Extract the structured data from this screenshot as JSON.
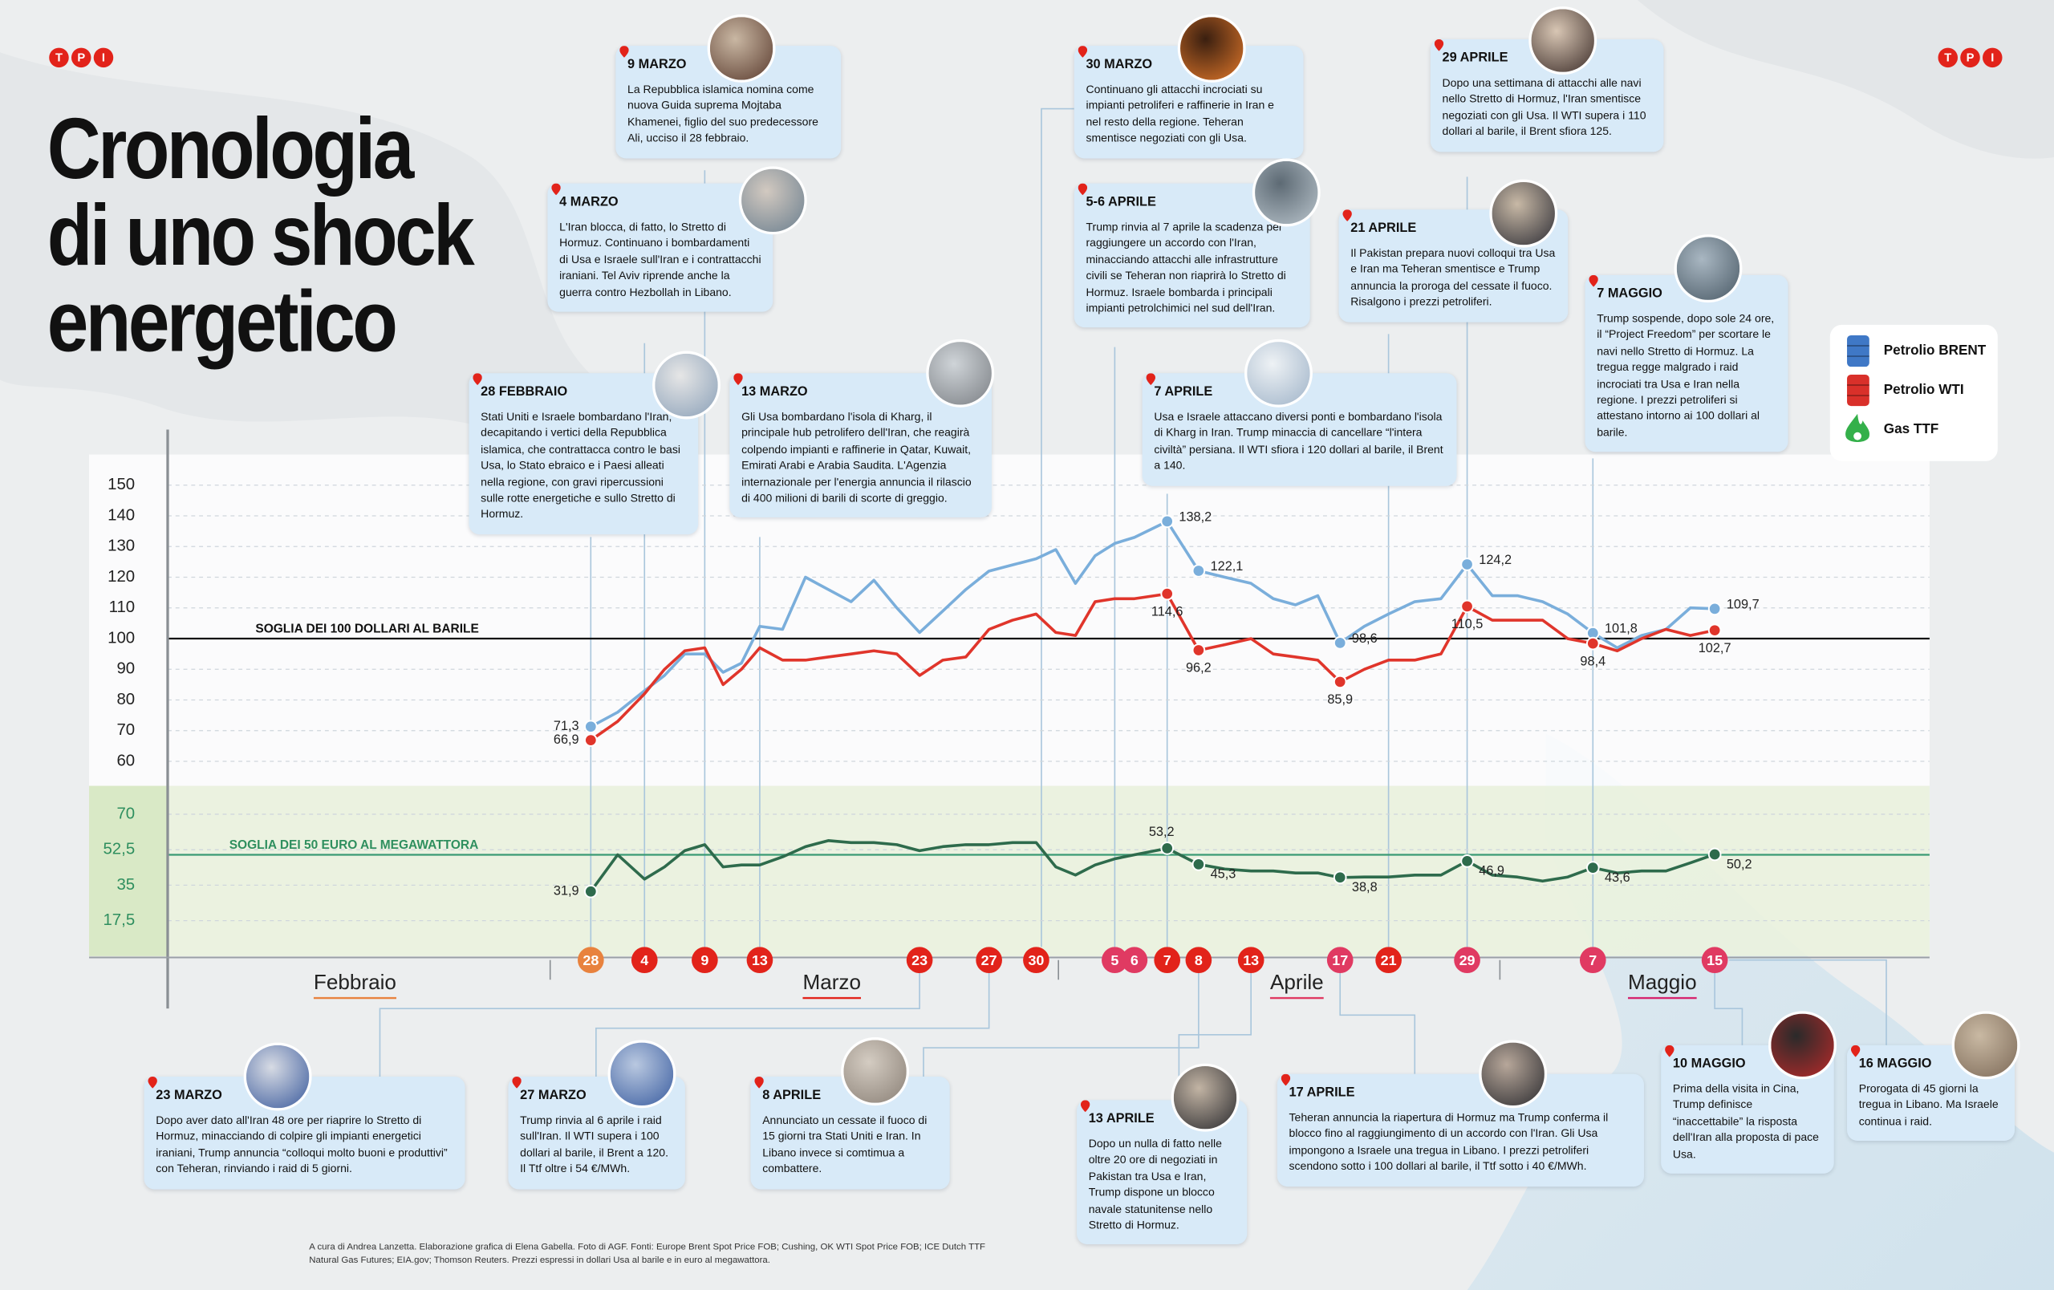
{
  "header": {
    "logo": "TPI",
    "title": [
      "Cronologia",
      "di uno shock",
      "energetico"
    ]
  },
  "chart_data": [
    {
      "type": "line",
      "categories": [
        "28",
        null,
        "4",
        null,
        null,
        "9",
        null,
        null,
        "13",
        null,
        null,
        null,
        null,
        null,
        null,
        "23",
        null,
        null,
        "27",
        null,
        "30",
        null,
        null,
        null,
        "5",
        "6",
        "7",
        "8",
        null,
        "13",
        null,
        null,
        null,
        "17",
        null,
        "21",
        null,
        null,
        "29",
        null,
        null,
        null,
        null,
        "7",
        null,
        null,
        null,
        null,
        "15"
      ],
      "months": [
        "Febbraio",
        "Marzo",
        "Aprile",
        "Maggio"
      ],
      "ylim": [
        52,
        160
      ],
      "yticks": [
        60,
        70,
        80,
        90,
        100,
        110,
        120,
        130,
        140,
        150
      ],
      "grid": true,
      "threshold": {
        "value": 100,
        "label": "SOGLIA DEI 100 DOLLARI AL BARILE"
      },
      "series": [
        {
          "name": "Petrolio BRENT",
          "color": "#7aaedb",
          "values": [
            71.3,
            76,
            83,
            88,
            95,
            95,
            89,
            92,
            104,
            103,
            120,
            116,
            112,
            119,
            110,
            102,
            109,
            116,
            122,
            124,
            126,
            129,
            118,
            127,
            131,
            133,
            138.2,
            122.1,
            120,
            118,
            113,
            111,
            114,
            98.6,
            104,
            108,
            112,
            113,
            124.2,
            114,
            114,
            112,
            108,
            101.8,
            97,
            101,
            103,
            110,
            109.7
          ],
          "value_labels": [
            "71,3",
            null,
            null,
            null,
            null,
            null,
            null,
            null,
            null,
            null,
            null,
            null,
            null,
            null,
            null,
            null,
            null,
            null,
            null,
            null,
            null,
            null,
            null,
            null,
            null,
            null,
            "138,2",
            "122,1",
            null,
            null,
            null,
            null,
            null,
            "98,6",
            null,
            null,
            null,
            null,
            "124,2",
            null,
            null,
            null,
            null,
            "101,8",
            null,
            null,
            null,
            null,
            "109,7"
          ]
        },
        {
          "name": "Petrolio WTI",
          "color": "#e0352b",
          "values": [
            66.9,
            73,
            82,
            90,
            96,
            97,
            85,
            90,
            97,
            93,
            93,
            94,
            95,
            96,
            95,
            88,
            93,
            94,
            103,
            106,
            108,
            102,
            101,
            112,
            113,
            113,
            114.6,
            96.2,
            98,
            100,
            95,
            94,
            93,
            85.9,
            90,
            93,
            93,
            95,
            110.5,
            106,
            106,
            106,
            100,
            98.4,
            96,
            100,
            103,
            101,
            102.7
          ],
          "value_labels": [
            "66,9",
            null,
            null,
            null,
            null,
            null,
            null,
            null,
            null,
            null,
            null,
            null,
            null,
            null,
            null,
            null,
            null,
            null,
            null,
            null,
            null,
            null,
            null,
            null,
            null,
            null,
            "114,6",
            "96,2",
            null,
            null,
            null,
            null,
            null,
            "85,9",
            null,
            null,
            null,
            null,
            "110,5",
            null,
            null,
            null,
            null,
            "98,4",
            null,
            null,
            null,
            null,
            "102,7"
          ]
        }
      ]
    },
    {
      "type": "line",
      "ylim": [
        0,
        84
      ],
      "yticks": [
        {
          "value": 17.5,
          "label": "17,5"
        },
        35,
        {
          "value": 52.5,
          "label": "52,5"
        },
        70
      ],
      "grid": true,
      "threshold": {
        "value": 50,
        "label": "SOGLIA DEI 50 EURO AL MEGAWATTORA"
      },
      "series": [
        {
          "name": "Gas TTF",
          "color": "#2e6b4c",
          "values": [
            31.9,
            50,
            38,
            44,
            52,
            55,
            44,
            45,
            45,
            49,
            54,
            57,
            56,
            56,
            55,
            52,
            54,
            55,
            55,
            56,
            56,
            44,
            40,
            45,
            48,
            50,
            53.2,
            45.3,
            43,
            42,
            42,
            41,
            41,
            38.8,
            39,
            39,
            40,
            40,
            46.9,
            40,
            39,
            37,
            39,
            43.6,
            41,
            42,
            42,
            46,
            50.2
          ],
          "value_labels": [
            "31,9",
            null,
            null,
            null,
            null,
            null,
            null,
            null,
            null,
            null,
            null,
            null,
            null,
            null,
            null,
            null,
            null,
            null,
            null,
            null,
            null,
            null,
            null,
            null,
            null,
            null,
            "53,2",
            "45,3",
            null,
            null,
            null,
            null,
            null,
            "38,8",
            null,
            null,
            null,
            null,
            "46,9",
            null,
            null,
            null,
            null,
            "43,6",
            null,
            null,
            null,
            null,
            "50,2"
          ]
        }
      ]
    }
  ],
  "events": [
    {
      "date": "9 MARZO",
      "text": "La Repubblica islamica nomina come nuova Guida suprema Mojtaba Khamenei, figlio del suo predecessore Ali, ucciso il 28 febbraio."
    },
    {
      "date": "4 MARZO",
      "text": "L'Iran blocca, di fatto, lo Stretto di Hormuz. Continuano i bombardamenti di Usa e Israele sull'Iran e i contrattacchi iraniani. Tel Aviv riprende anche la guerra contro Hezbollah in Libano."
    },
    {
      "date": "28 FEBBRAIO",
      "text": "Stati Uniti e Israele bombardano l'Iran, decapitando i vertici della Repubblica islamica, che contrattacca contro le basi Usa, lo Stato ebraico e i Paesi alleati nella regione, con gravi ripercussioni sulle rotte energetiche e sullo Stretto di Hormuz."
    },
    {
      "date": "13 MARZO",
      "text": "Gli Usa bombardano l'isola di Kharg, il principale hub petrolifero dell'Iran, che reagirà colpendo impianti e raffinerie in Qatar, Kuwait, Emirati Arabi e Arabia Saudita. L'Agenzia internazionale per l'energia annuncia il rilascio di 400 milioni di barili di scorte di greggio."
    },
    {
      "date": "30 MARZO",
      "text": "Continuano gli attacchi incrociati su impianti petroliferi e raffinerie in Iran e nel resto della regione. Teheran smentisce negoziati con gli Usa."
    },
    {
      "date": "5-6 APRILE",
      "text": "Trump rinvia al 7 aprile la scadenza per raggiungere un accordo con l'Iran, minacciando attacchi alle infrastrutture civili se Teheran non riaprirà lo Stretto di Hormuz. Israele bombarda i principali impianti petrolchimici nel sud dell'Iran."
    },
    {
      "date": "7 APRILE",
      "text": "Usa e Israele attaccano diversi ponti e bombardano l'isola di Kharg in Iran. Trump minaccia di cancellare “l'intera civiltà” persiana. Il WTI sfiora i 120 dollari al barile, il Brent a 140."
    },
    {
      "date": "21 APRILE",
      "text": "Il Pakistan prepara nuovi colloqui tra Usa e Iran ma Teheran smentisce e Trump annuncia la proroga del cessate il fuoco. Risalgono i prezzi petroliferi."
    },
    {
      "date": "29 APRILE",
      "text": "Dopo una settimana di attacchi alle navi nello Stretto di Hormuz, l'Iran smentisce negoziati con gli Usa. Il WTI supera i 110 dollari al barile, il Brent sfiora 125."
    },
    {
      "date": "7 MAGGIO",
      "text": "Trump sospende, dopo sole 24 ore, il “Project Freedom” per scortare le navi nello Stretto di Hormuz. La tregua regge malgrado i raid incrociati tra Usa e Iran nella regione. I prezzi petroliferi si attestano intorno ai 100 dollari al barile."
    },
    {
      "date": "23 MARZO",
      "text": "Dopo aver dato all'Iran 48 ore per riaprire lo Stretto di Hormuz, minacciando di colpire gli impianti energetici iraniani, Trump annuncia “colloqui molto buoni e produttivi” con Teheran, rinviando i raid di 5 giorni."
    },
    {
      "date": "27 MARZO",
      "text": "Trump rinvia al 6 aprile i raid sull'Iran. Il WTI supera i 100 dollari al barile, il Brent a 120. Il Ttf oltre i 54 €/MWh."
    },
    {
      "date": "8 APRILE",
      "text": "Annunciato un cessate il fuoco di 15 giorni tra Stati Uniti e Iran. In Libano invece si comtimua a combattere."
    },
    {
      "date": "13 APRILE",
      "text": "Dopo un nulla di fatto nelle oltre 20 ore di negoziati in Pakistan tra Usa e Iran, Trump dispone un blocco navale statunitense nello Stretto di Hormuz."
    },
    {
      "date": "17 APRILE",
      "text": "Teheran annuncia la riapertura di Hormuz ma Trump conferma il blocco fino al raggiungimento di un accordo con l'Iran. Gli Usa impongono a Israele una tregua in Libano. I prezzi petroliferi scendono sotto i 100 dollari al barile, il Ttf sotto i 40 €/MWh."
    },
    {
      "date": "10 MAGGIO",
      "text": "Prima della visita in Cina, Trump definisce “inaccettabile” la risposta dell'Iran alla proposta di pace Usa."
    },
    {
      "date": "16 MAGGIO",
      "text": "Prorogata di 45 giorni la tregua in Libano. Ma Israele continua i raid."
    }
  ],
  "credits": "A cura di Andrea Lanzetta. Elaborazione grafica di Elena Gabella. Foto di AGF. Fonti: Europe Brent Spot Price FOB; Cushing, OK WTI Spot Price FOB; ICE Dutch TTF Natural Gas Futures; EIA.gov; Thomson Reuters. Prezzi espressi in dollari Usa al barile e in euro al megawattora."
}
